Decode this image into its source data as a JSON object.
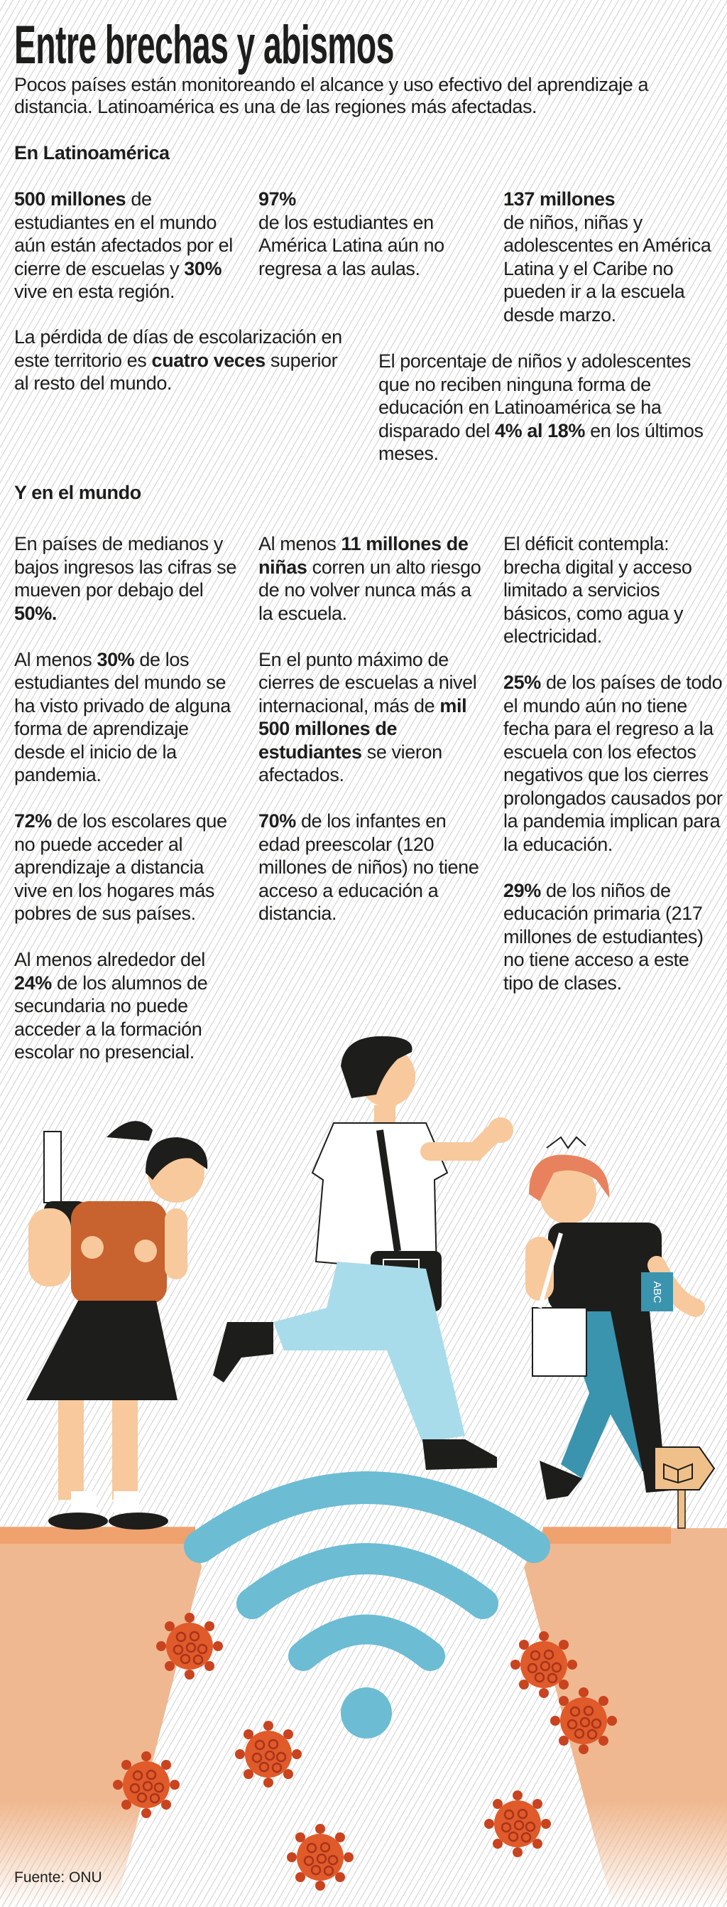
{
  "header": {
    "title": "Entre brechas y abismos",
    "subtitle": "Pocos países están monitoreando el alcance y uso efectivo del aprendizaje a distancia. Latinoamérica es una de las regiones más afectadas."
  },
  "latam": {
    "heading": "En Latinoamérica",
    "facts": [
      [
        {
          "t": "500 millones",
          "b": true
        },
        {
          "t": " de estudiantes en el mundo aún están afectados por el cierre de escuelas y ",
          "b": false
        },
        {
          "t": "30%",
          "b": true
        },
        {
          "t": " vive en esta región.",
          "b": false
        }
      ],
      [
        {
          "t": "97%",
          "b": true
        },
        {
          "t": "\nde los estudiantes en América Latina aún no regresa a las aulas.",
          "b": false
        }
      ],
      [
        {
          "t": "137 millones",
          "b": true
        },
        {
          "t": "\nde niños, niñas y adolescentes en América Latina y el Caribe no pueden ir a la escuela desde marzo.",
          "b": false
        }
      ],
      [
        {
          "t": "La pérdida de días de escolarización en este territorio es ",
          "b": false
        },
        {
          "t": "cuatro veces",
          "b": true
        },
        {
          "t": " superior al resto del mundo.",
          "b": false
        }
      ],
      [
        {
          "t": "El porcentaje de niños y adolescentes que no reciben ninguna forma de educación en Latinoamérica se ha disparado del ",
          "b": false
        },
        {
          "t": "4% al 18%",
          "b": true
        },
        {
          "t": " en los últimos meses.",
          "b": false
        }
      ]
    ]
  },
  "world": {
    "heading": "Y en el mundo",
    "columns": [
      [
        [
          {
            "t": "En países de medianos y bajos ingresos las cifras se mueven por debajo del ",
            "b": false
          },
          {
            "t": "50%.",
            "b": true
          }
        ],
        [
          {
            "t": "Al menos ",
            "b": false
          },
          {
            "t": "30%",
            "b": true
          },
          {
            "t": " de los estudiantes del mundo se ha visto privado de alguna forma de aprendizaje desde el inicio de la pandemia.",
            "b": false
          }
        ],
        [
          {
            "t": "72%",
            "b": true
          },
          {
            "t": " de los escolares que no puede acceder al aprendizaje a distancia vive en los hogares más pobres de sus países.",
            "b": false
          }
        ],
        [
          {
            "t": "Al menos alrededor del ",
            "b": false
          },
          {
            "t": "24%",
            "b": true
          },
          {
            "t": " de los alumnos de secundaria no puede acceder a la formación escolar no presencial.",
            "b": false
          }
        ]
      ],
      [
        [
          {
            "t": "Al menos ",
            "b": false
          },
          {
            "t": "11 millones de niñas",
            "b": true
          },
          {
            "t": " corren un alto riesgo de no volver nunca más a la escuela.",
            "b": false
          }
        ],
        [
          {
            "t": "En el punto máximo de cierres de escuelas a nivel internacional, más de ",
            "b": false
          },
          {
            "t": "mil 500 millones de estudiantes",
            "b": true
          },
          {
            "t": " se vieron afectados.",
            "b": false
          }
        ],
        [
          {
            "t": "70%",
            "b": true
          },
          {
            "t": " de los infantes en edad preescolar (120 millones de niños) no tiene acceso a educación a distancia.",
            "b": false
          }
        ]
      ],
      [
        [
          {
            "t": "El déficit contempla: brecha digital y acceso limitado a servicios básicos, como agua y electricidad.",
            "b": false
          }
        ],
        [
          {
            "t": "25%",
            "b": true
          },
          {
            "t": " de los países de todo el mundo aún no tiene fecha para el regreso a la escuela con los efectos negativos que los cierres prolongados causados por la pandemia implican para la educación.",
            "b": false
          }
        ],
        [
          {
            "t": "29%",
            "b": true
          },
          {
            "t": " de los niños de educación primaria (217 millones de estudiantes) no tiene acceso a este tipo de clases.",
            "b": false
          }
        ]
      ]
    ]
  },
  "illustration": {
    "book_label": "ABC",
    "icons": [
      "student-girl",
      "student-boy",
      "student-girl-redhead",
      "wifi-icon",
      "virus-icon",
      "school-sign-icon"
    ],
    "colors": {
      "ground": "#f0b890",
      "ground_edge": "#ee9c68",
      "wifi": "#6cbcd4",
      "virus": "#e05a2a",
      "skin": "#f7c99c",
      "shirt_orange": "#c8622e",
      "pants_light": "#a9dcea",
      "pants_teal": "#3a94ae",
      "hair_red": "#e8825e"
    }
  },
  "footer": {
    "source": "Fuente: ONU"
  }
}
